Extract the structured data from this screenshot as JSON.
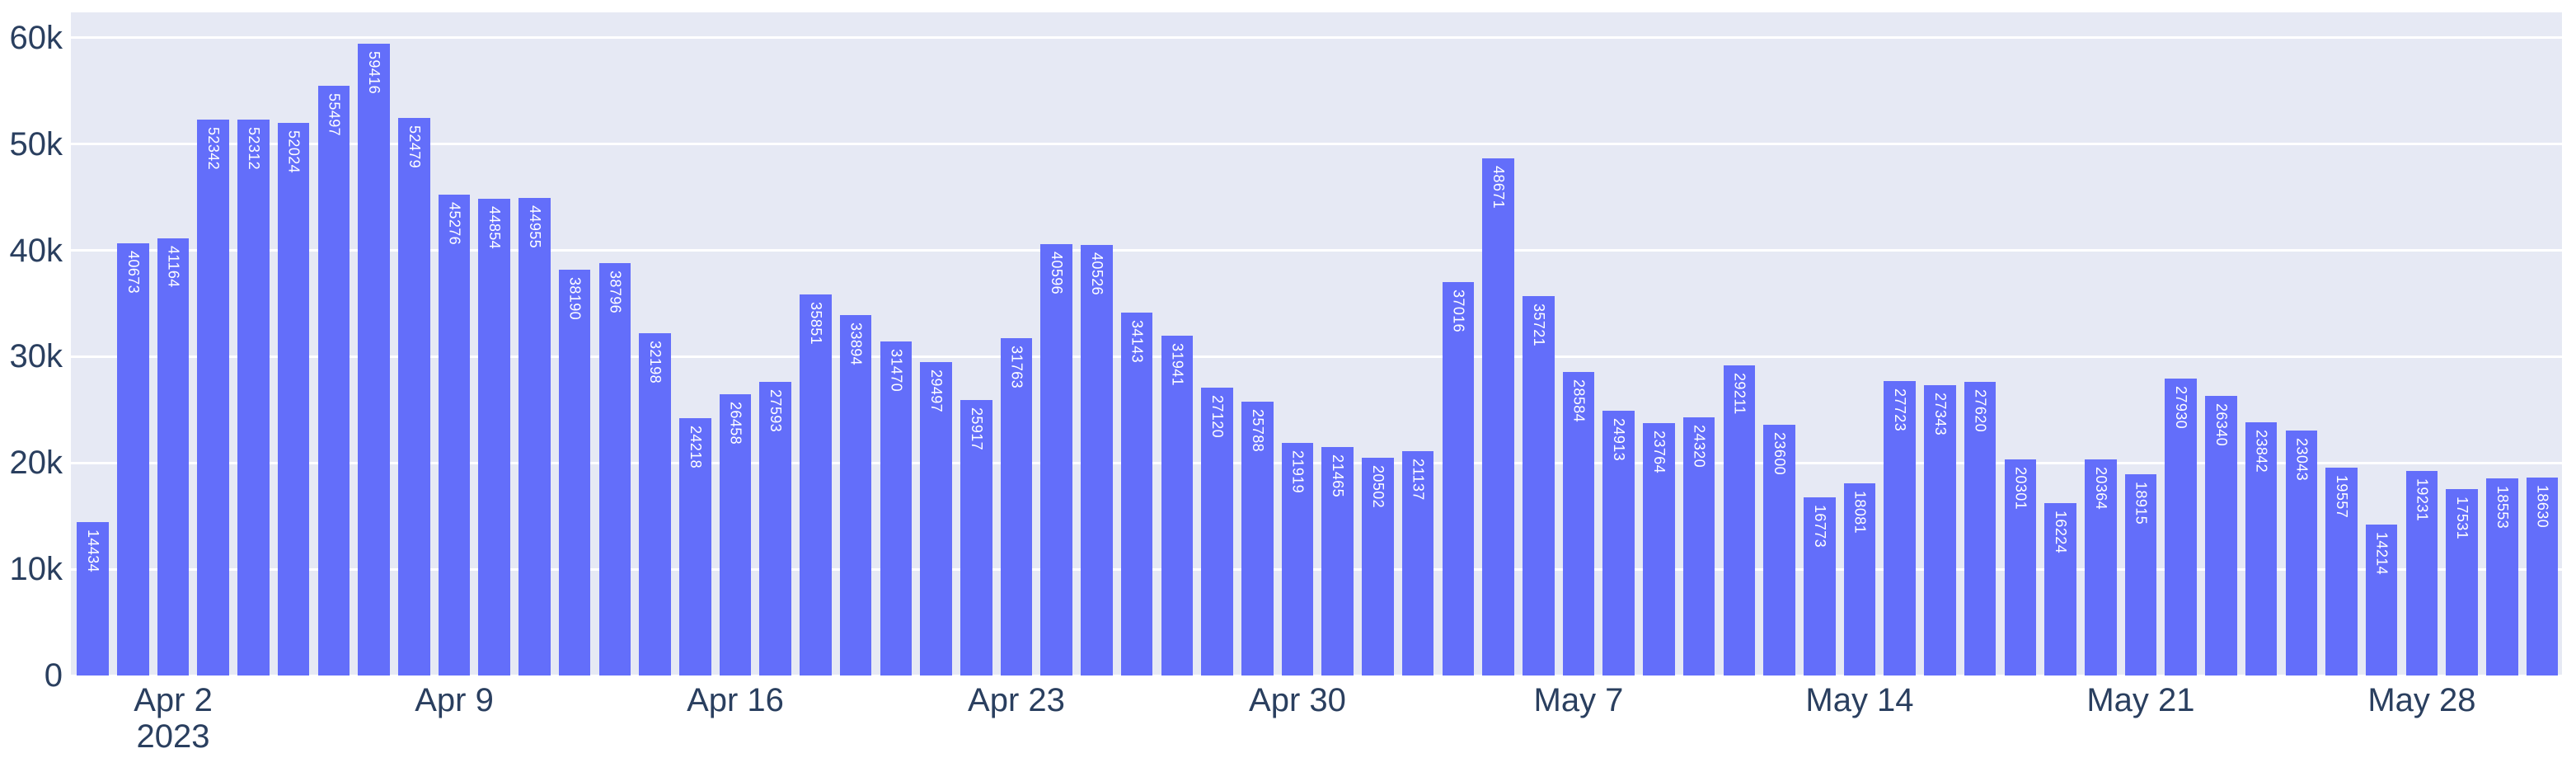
{
  "chart_data": {
    "type": "bar",
    "title": "",
    "xlabel": "",
    "ylabel": "",
    "legend": false,
    "grid": true,
    "ylim": [
      0,
      62400
    ],
    "x_dates": [
      "2023-03-31",
      "2023-04-01",
      "2023-04-02",
      "2023-04-03",
      "2023-04-04",
      "2023-04-05",
      "2023-04-06",
      "2023-04-07",
      "2023-04-08",
      "2023-04-09",
      "2023-04-10",
      "2023-04-11",
      "2023-04-12",
      "2023-04-13",
      "2023-04-14",
      "2023-04-15",
      "2023-04-16",
      "2023-04-17",
      "2023-04-18",
      "2023-04-19",
      "2023-04-20",
      "2023-04-21",
      "2023-04-22",
      "2023-04-23",
      "2023-04-24",
      "2023-04-25",
      "2023-04-26",
      "2023-04-27",
      "2023-04-28",
      "2023-04-29",
      "2023-04-30",
      "2023-05-01",
      "2023-05-02",
      "2023-05-03",
      "2023-05-04",
      "2023-05-05",
      "2023-05-06",
      "2023-05-07",
      "2023-05-08",
      "2023-05-09",
      "2023-05-10",
      "2023-05-11",
      "2023-05-12",
      "2023-05-13",
      "2023-05-14",
      "2023-05-15",
      "2023-05-16",
      "2023-05-17",
      "2023-05-18",
      "2023-05-19",
      "2023-05-20",
      "2023-05-21",
      "2023-05-22",
      "2023-05-23",
      "2023-05-24",
      "2023-05-25",
      "2023-05-26",
      "2023-05-27",
      "2023-05-28",
      "2023-05-29",
      "2023-05-30",
      "2023-05-31"
    ],
    "values": [
      14434,
      40673,
      41164,
      52342,
      52312,
      52024,
      55497,
      59416,
      52479,
      45276,
      44854,
      44955,
      38190,
      38796,
      32198,
      24218,
      26458,
      27593,
      35851,
      33894,
      31470,
      29497,
      25917,
      31763,
      40596,
      40526,
      34143,
      31941,
      27120,
      25788,
      21919,
      21465,
      20502,
      21137,
      37016,
      48671,
      35721,
      28584,
      24913,
      23764,
      24320,
      29211,
      23600,
      16773,
      18081,
      27723,
      27343,
      27620,
      20301,
      16224,
      20364,
      18915,
      27930,
      26340,
      23842,
      23043,
      19557,
      14214,
      19231,
      17531,
      18553,
      18630
    ],
    "bar_value_labels_rotated_90_inside_top": true,
    "y_ticks": [
      {
        "v": 0,
        "label": "0"
      },
      {
        "v": 10000,
        "label": "10k"
      },
      {
        "v": 20000,
        "label": "20k"
      },
      {
        "v": 30000,
        "label": "30k"
      },
      {
        "v": 40000,
        "label": "40k"
      },
      {
        "v": 50000,
        "label": "50k"
      },
      {
        "v": 60000,
        "label": "60k"
      }
    ],
    "x_ticks": [
      {
        "index": 2,
        "label": "Apr 2",
        "sublabel": "2023"
      },
      {
        "index": 9,
        "label": "Apr 9",
        "sublabel": ""
      },
      {
        "index": 16,
        "label": "Apr 16",
        "sublabel": ""
      },
      {
        "index": 23,
        "label": "Apr 23",
        "sublabel": ""
      },
      {
        "index": 30,
        "label": "Apr 30",
        "sublabel": ""
      },
      {
        "index": 37,
        "label": "May 7",
        "sublabel": ""
      },
      {
        "index": 44,
        "label": "May 14",
        "sublabel": ""
      },
      {
        "index": 51,
        "label": "May 21",
        "sublabel": ""
      },
      {
        "index": 58,
        "label": "May 28",
        "sublabel": ""
      }
    ],
    "colors": {
      "bar": "#636efa",
      "plot_bg": "#e6e9f4",
      "paper_bg": "#ffffff",
      "grid": "#ffffff",
      "tick_text": "#2a3f5f",
      "bar_label_text": "#ffffff"
    }
  }
}
